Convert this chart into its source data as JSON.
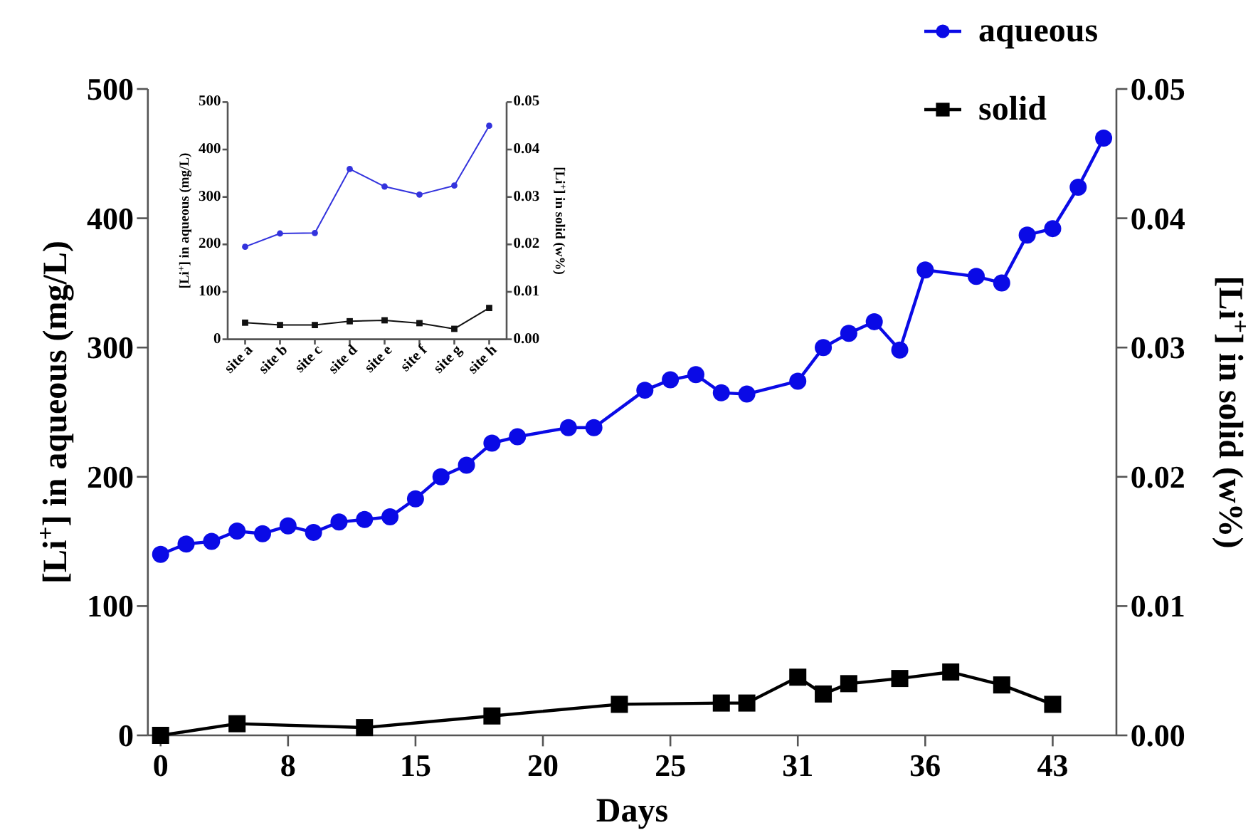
{
  "chart_data": [
    {
      "type": "line",
      "xlabel": "Days",
      "ylabel": "[Li$^{+}$] in aqueous (mg/L)",
      "y2label": "[Li$^{+}$] in solid (w%)",
      "legend": "top right",
      "grid": false,
      "categories": [
        "0",
        null,
        null,
        null,
        null,
        "8",
        null,
        null,
        null,
        null,
        "15",
        null,
        null,
        null,
        null,
        "20",
        null,
        null,
        null,
        null,
        "25",
        null,
        null,
        null,
        null,
        "31",
        null,
        null,
        null,
        null,
        "36",
        null,
        null,
        null,
        null,
        "43",
        null,
        null
      ],
      "ylim": [
        0,
        500
      ],
      "yticks": [
        0,
        100,
        200,
        300,
        400,
        500
      ],
      "y2lim": [
        0,
        0.05
      ],
      "y2ticks": [
        {
          "value": 0,
          "label": "0.00"
        },
        {
          "value": 0.01,
          "label": "0.01"
        },
        {
          "value": 0.02,
          "label": "0.02"
        },
        {
          "value": 0.03,
          "label": "0.03"
        },
        {
          "value": 0.04,
          "label": "0.04"
        },
        {
          "value": 0.05,
          "label": "0.05"
        }
      ],
      "series": [
        {
          "name": "aqueous",
          "color": "#0a0ae6",
          "marker": "circle",
          "values": [
            140,
            148,
            150,
            158,
            156,
            162,
            157,
            165,
            167,
            169,
            183,
            200,
            209,
            226,
            231,
            null,
            238,
            238,
            null,
            267,
            275,
            279,
            265,
            264,
            null,
            274,
            300,
            311,
            320,
            298,
            360,
            null,
            355,
            350,
            387,
            392,
            424,
            462
          ]
        },
        {
          "name": "solid",
          "color": "#000000",
          "marker": "square",
          "axis": "y2",
          "values": [
            0,
            null,
            null,
            0.0009,
            null,
            null,
            null,
            null,
            0.0006,
            null,
            null,
            null,
            null,
            0.0015,
            null,
            null,
            null,
            null,
            0.0024,
            null,
            null,
            null,
            0.0025,
            0.0025,
            null,
            0.0045,
            0.0032,
            0.004,
            null,
            0.0044,
            null,
            0.0049,
            null,
            0.0039,
            null,
            0.0024,
            null,
            null
          ]
        }
      ]
    },
    {
      "type": "line",
      "ylabel": "[Li$^{+}$] in aqueous (mg/L)",
      "y2label": "[Li$^{+}$] in solid (w%)",
      "legend": false,
      "grid": false,
      "categories": [
        "site a",
        "site b",
        "site c",
        "site d",
        "site e",
        "site f",
        "site g",
        "site h"
      ],
      "ylim": [
        0,
        500
      ],
      "yticks": [
        0,
        100,
        200,
        300,
        400,
        500
      ],
      "y2lim": [
        0,
        0.05
      ],
      "y2ticks": [
        {
          "value": 0,
          "label": "0.00"
        },
        {
          "value": 0.01,
          "label": "0.01"
        },
        {
          "value": 0.02,
          "label": "0.02"
        },
        {
          "value": 0.03,
          "label": "0.03"
        },
        {
          "value": 0.04,
          "label": "0.04"
        },
        {
          "value": 0.05,
          "label": "0.05"
        }
      ],
      "series": [
        {
          "color": "#3333dd",
          "marker": "circle",
          "values": [
            195,
            223,
            224,
            359,
            322,
            305,
            324,
            450
          ]
        },
        {
          "color": "#111111",
          "marker": "square",
          "axis": "y2",
          "values": [
            0.0035,
            0.003,
            0.003,
            0.0038,
            0.004,
            0.0034,
            0.0022,
            0.0066
          ]
        }
      ]
    }
  ]
}
